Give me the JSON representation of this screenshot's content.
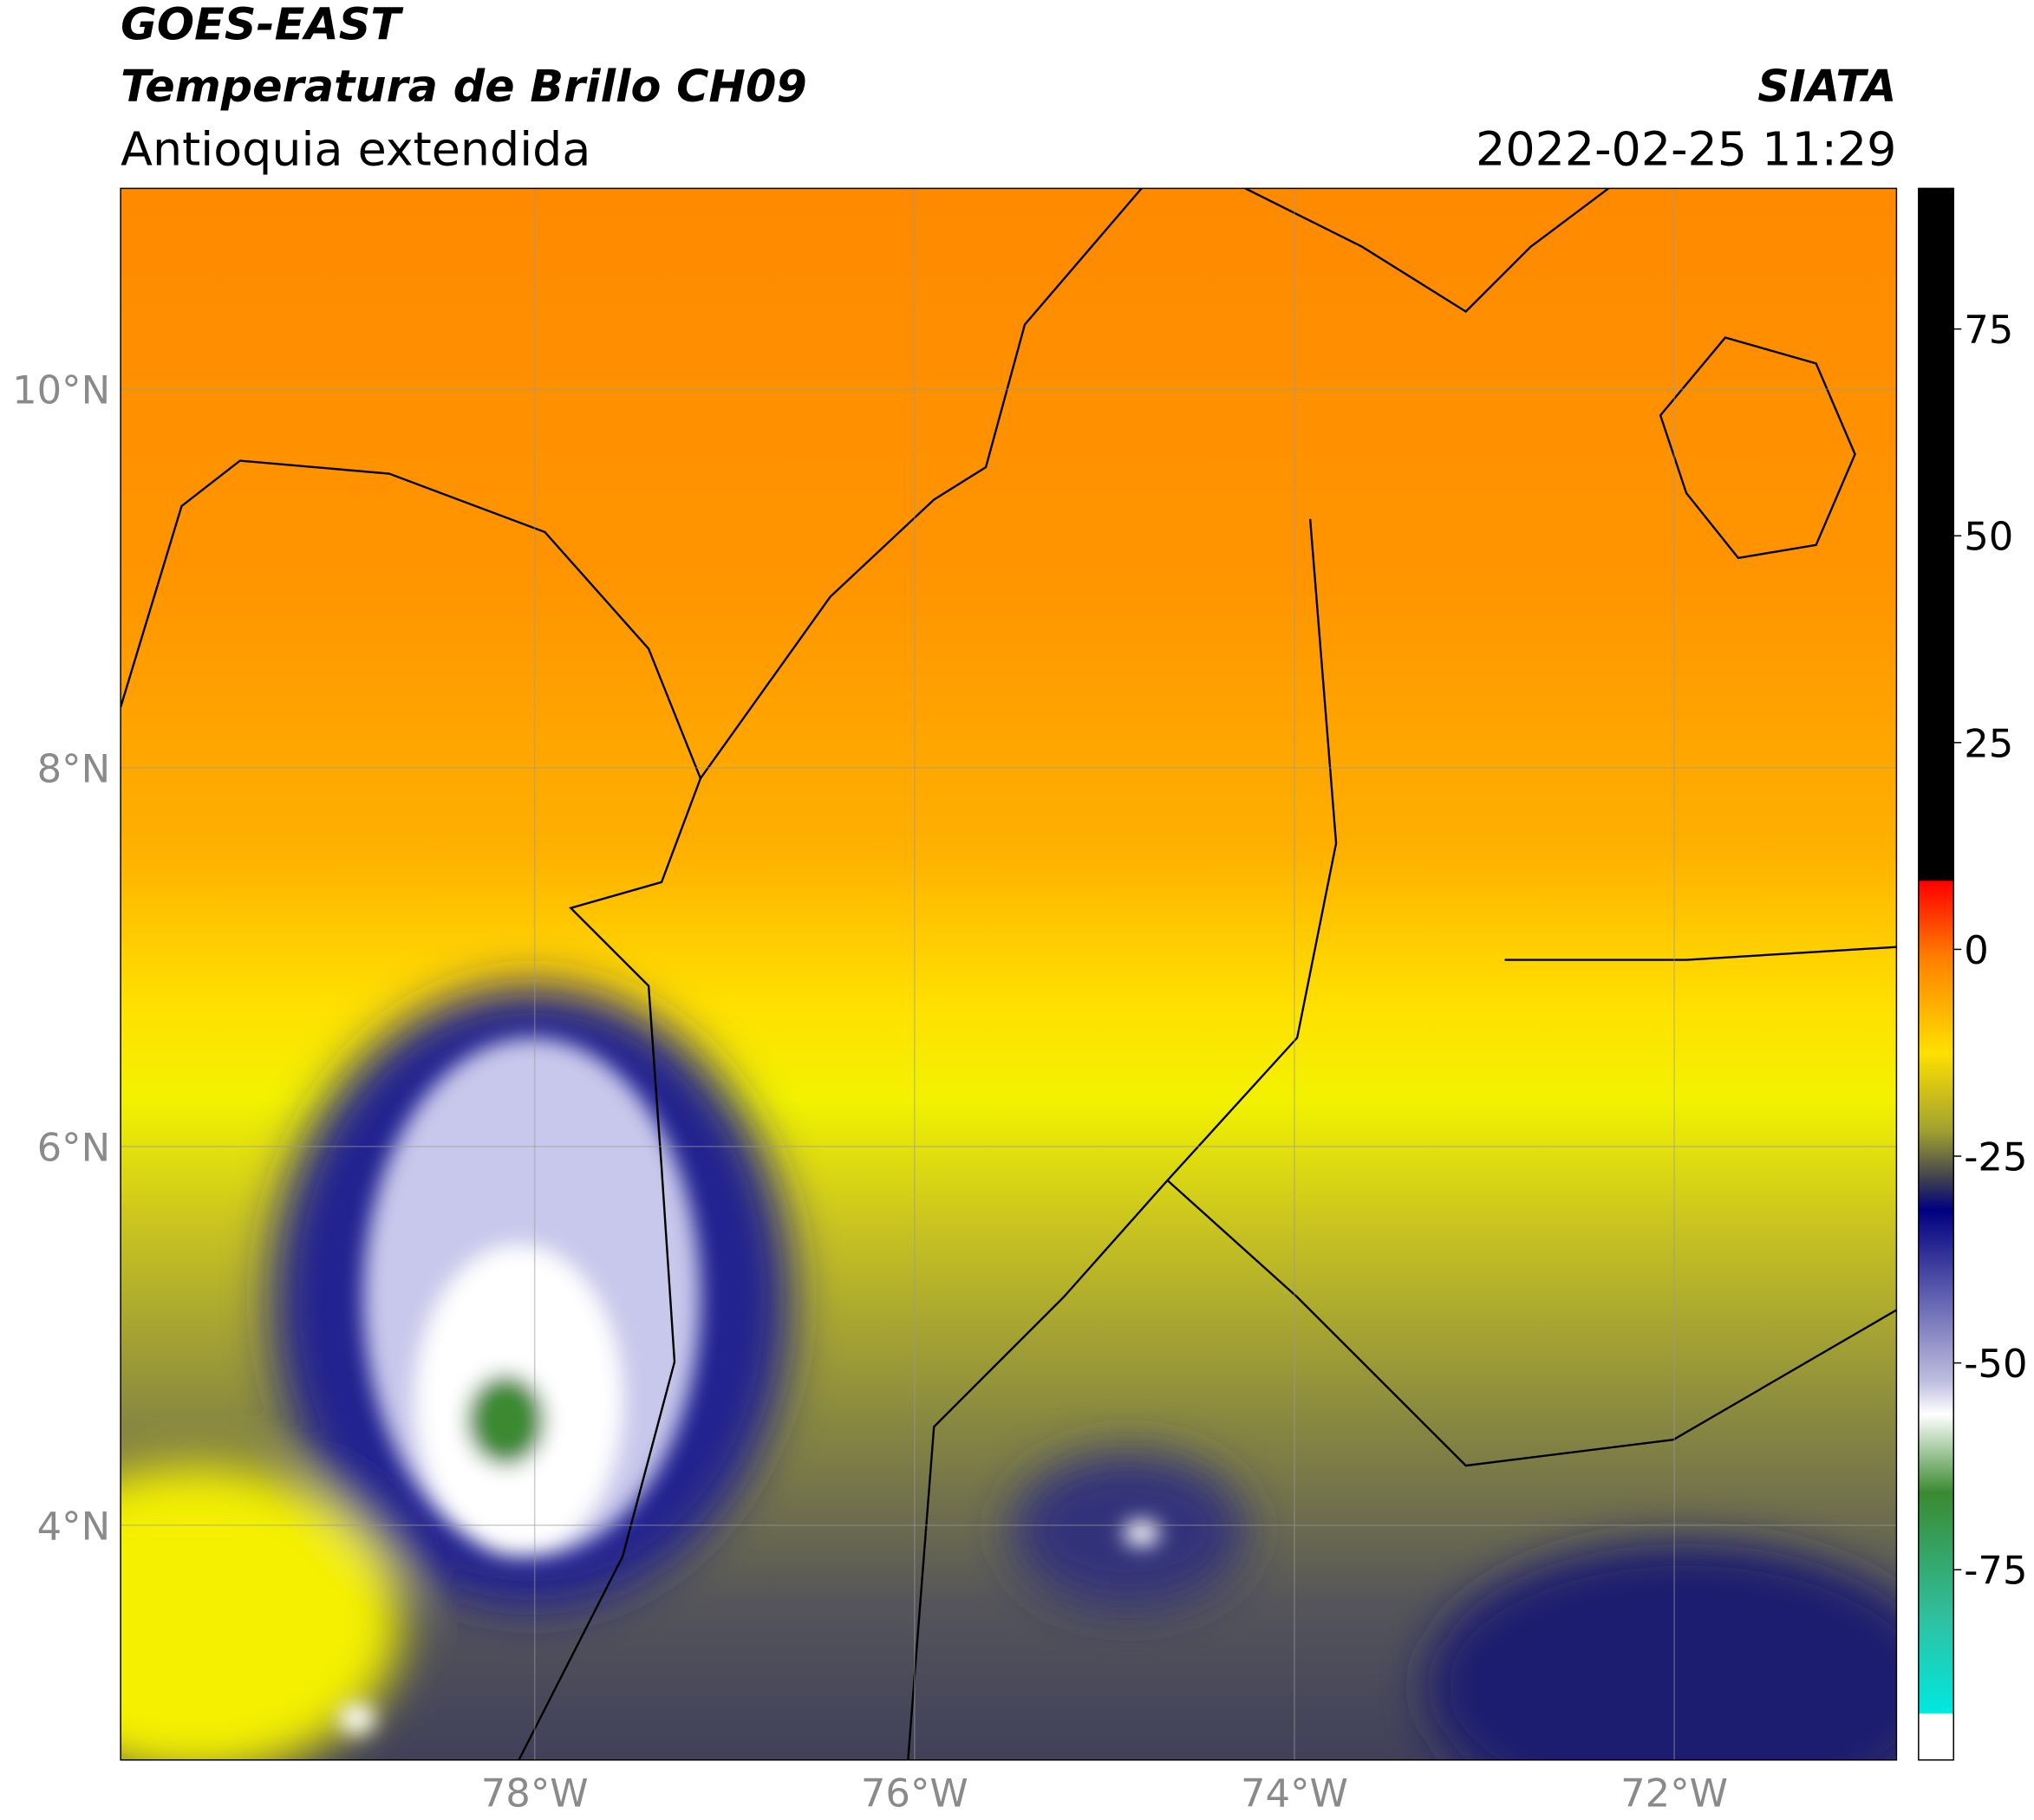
{
  "header": {
    "title": "GOES-EAST",
    "subtitle": "Temperatura de Brillo CH09",
    "region": "Antioquia extendida",
    "source": "SIATA",
    "datetime": "2022-02-25 11:29"
  },
  "map": {
    "xlim": [
      -80.18,
      -70.83
    ],
    "ylim": [
      2.76,
      11.06
    ],
    "xticks": [
      {
        "value": -78,
        "label": "78°W"
      },
      {
        "value": -76,
        "label": "76°W"
      },
      {
        "value": -74,
        "label": "74°W"
      },
      {
        "value": -72,
        "label": "72°W"
      }
    ],
    "yticks": [
      {
        "value": 4,
        "label": "4°N"
      },
      {
        "value": 6,
        "label": "6°N"
      },
      {
        "value": 8,
        "label": "8°N"
      },
      {
        "value": 10,
        "label": "10°N"
      }
    ],
    "grid": true
  },
  "colorbar": {
    "lim": [
      -98,
      92
    ],
    "ticks": [
      -75,
      -50,
      -25,
      0,
      25,
      50,
      75
    ]
  }
}
